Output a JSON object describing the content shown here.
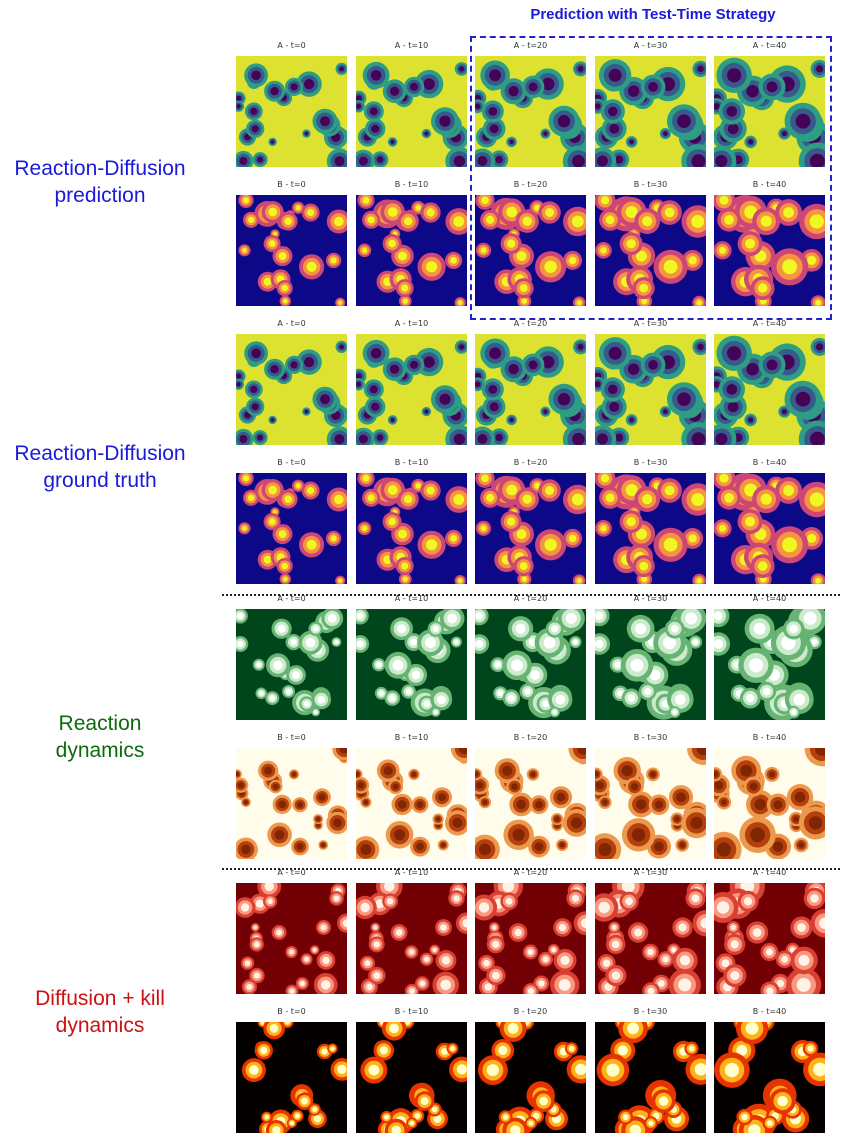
{
  "header": {
    "title": "Prediction with Test-Time Strategy"
  },
  "sections": [
    {
      "id": "rd-prediction",
      "label_lines": [
        "Reaction-Diffusion",
        "prediction"
      ],
      "color": "#1a1ad9",
      "rows": [
        {
          "species": "A",
          "cmap": "viridis",
          "seed": 3
        },
        {
          "species": "B",
          "cmap": "plasma",
          "seed": 7
        }
      ]
    },
    {
      "id": "rd-ground-truth",
      "label_lines": [
        "Reaction-Diffusion",
        "ground truth"
      ],
      "color": "#1a1ad9",
      "rows": [
        {
          "species": "A",
          "cmap": "viridis",
          "seed": 3
        },
        {
          "species": "B",
          "cmap": "plasma",
          "seed": 7
        }
      ]
    },
    {
      "id": "reaction",
      "label_lines": [
        "Reaction",
        "dynamics"
      ],
      "color": "#0d6b0d",
      "rows": [
        {
          "species": "A",
          "cmap": "greens",
          "seed": 11
        },
        {
          "species": "B",
          "cmap": "oranges",
          "seed": 13
        }
      ]
    },
    {
      "id": "diffusion-kill",
      "label_lines": [
        "Diffusion + kill",
        "dynamics"
      ],
      "color": "#cc1111",
      "rows": [
        {
          "species": "A",
          "cmap": "reds",
          "seed": 17
        },
        {
          "species": "B",
          "cmap": "hot",
          "seed": 19
        }
      ]
    }
  ],
  "timesteps": [
    "t=0",
    "t=10",
    "t=20",
    "t=30",
    "t=40"
  ],
  "panel_label_template": "{species} - {t}"
}
